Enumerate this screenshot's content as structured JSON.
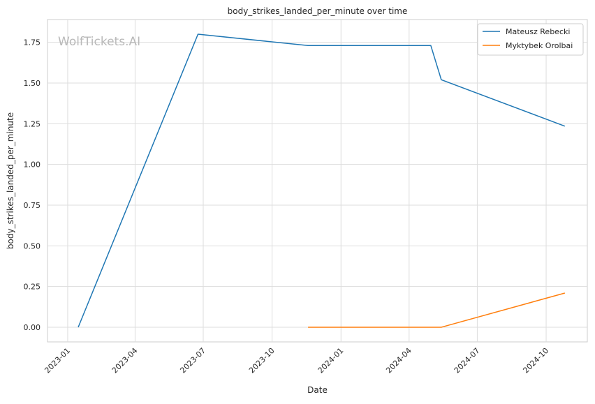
{
  "chart_data": {
    "type": "line",
    "title": "body_strikes_landed_per_minute over time",
    "xlabel": "Date",
    "ylabel": "body_strikes_landed_per_minute",
    "watermark": "WolfTickets.AI",
    "x_ticks": [
      "2023-01",
      "2023-04",
      "2023-07",
      "2023-10",
      "2024-01",
      "2024-04",
      "2024-07",
      "2024-10"
    ],
    "y_ticks": [
      "0.00",
      "0.25",
      "0.50",
      "0.75",
      "1.00",
      "1.25",
      "1.50",
      "1.75"
    ],
    "xlim": [
      "2022-12-05",
      "2024-11-25"
    ],
    "ylim": [
      -0.09,
      1.89
    ],
    "grid": true,
    "legend_position": "top-right",
    "series": [
      {
        "name": "Mateusz Rebecki",
        "color": "#1f77b4",
        "points": [
          {
            "x": "2023-01-15",
            "y": 0.0
          },
          {
            "x": "2023-06-24",
            "y": 1.8
          },
          {
            "x": "2023-11-18",
            "y": 1.73
          },
          {
            "x": "2024-04-30",
            "y": 1.73
          },
          {
            "x": "2024-05-14",
            "y": 1.52
          },
          {
            "x": "2024-10-26",
            "y": 1.235
          }
        ]
      },
      {
        "name": "Myktybek Orolbai",
        "color": "#ff7f0e",
        "points": [
          {
            "x": "2023-11-18",
            "y": 0.0
          },
          {
            "x": "2024-05-14",
            "y": 0.0
          },
          {
            "x": "2024-10-26",
            "y": 0.21
          }
        ]
      }
    ]
  }
}
